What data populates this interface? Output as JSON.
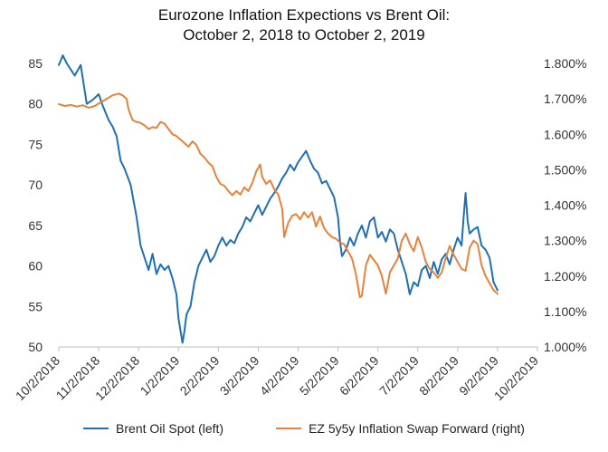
{
  "chart_data": {
    "type": "line",
    "title_line1": "Eurozone Inflation Expections vs Brent Oil:",
    "title_line2": "October 2, 2018 to October 2, 2019",
    "x_labels": [
      "10/2/2018",
      "11/2/2018",
      "12/2/2018",
      "1/2/2019",
      "2/2/2019",
      "3/2/2019",
      "4/2/2019",
      "5/2/2019",
      "6/2/2019",
      "7/2/2019",
      "8/2/2019",
      "9/2/2019",
      "10/2/2019"
    ],
    "y_left": {
      "min": 50,
      "max": 85,
      "step": 5,
      "tick_labels": [
        "50",
        "55",
        "60",
        "65",
        "70",
        "75",
        "80",
        "85"
      ]
    },
    "y_right": {
      "min": 1.0,
      "max": 1.8,
      "step": 0.1,
      "tick_labels": [
        "1.000%",
        "1.100%",
        "1.200%",
        "1.300%",
        "1.400%",
        "1.500%",
        "1.600%",
        "1.700%",
        "1.800%"
      ]
    },
    "series": [
      {
        "name": "Brent Oil Spot (left)",
        "axis": "left",
        "color": "#1f6fb4",
        "points": [
          [
            0,
            84.8
          ],
          [
            0.1,
            86.0
          ],
          [
            0.2,
            85.0
          ],
          [
            0.4,
            83.5
          ],
          [
            0.55,
            84.8
          ],
          [
            0.7,
            80.0
          ],
          [
            0.85,
            80.5
          ],
          [
            1.0,
            81.2
          ],
          [
            1.1,
            79.8
          ],
          [
            1.25,
            78.0
          ],
          [
            1.35,
            77.2
          ],
          [
            1.45,
            76.0
          ],
          [
            1.55,
            73.0
          ],
          [
            1.65,
            72.0
          ],
          [
            1.8,
            70.0
          ],
          [
            1.95,
            66.0
          ],
          [
            2.05,
            62.5
          ],
          [
            2.15,
            61.0
          ],
          [
            2.25,
            59.5
          ],
          [
            2.35,
            61.5
          ],
          [
            2.45,
            59.0
          ],
          [
            2.55,
            60.2
          ],
          [
            2.65,
            59.5
          ],
          [
            2.75,
            60.0
          ],
          [
            2.85,
            58.5
          ],
          [
            2.95,
            56.5
          ],
          [
            3.0,
            53.5
          ],
          [
            3.05,
            52.0
          ],
          [
            3.1,
            50.5
          ],
          [
            3.15,
            52.0
          ],
          [
            3.2,
            54.0
          ],
          [
            3.3,
            55.0
          ],
          [
            3.4,
            58.0
          ],
          [
            3.5,
            60.0
          ],
          [
            3.6,
            61.0
          ],
          [
            3.7,
            62.0
          ],
          [
            3.8,
            60.5
          ],
          [
            3.9,
            61.2
          ],
          [
            4.0,
            62.5
          ],
          [
            4.1,
            63.5
          ],
          [
            4.2,
            62.5
          ],
          [
            4.3,
            63.2
          ],
          [
            4.4,
            62.8
          ],
          [
            4.5,
            64.0
          ],
          [
            4.6,
            64.8
          ],
          [
            4.7,
            66.0
          ],
          [
            4.8,
            65.5
          ],
          [
            4.9,
            66.5
          ],
          [
            5.0,
            67.5
          ],
          [
            5.1,
            66.3
          ],
          [
            5.2,
            67.3
          ],
          [
            5.3,
            68.3
          ],
          [
            5.4,
            69.0
          ],
          [
            5.5,
            69.8
          ],
          [
            5.6,
            70.8
          ],
          [
            5.7,
            71.5
          ],
          [
            5.8,
            72.5
          ],
          [
            5.9,
            71.8
          ],
          [
            6.0,
            72.8
          ],
          [
            6.1,
            73.5
          ],
          [
            6.2,
            74.2
          ],
          [
            6.3,
            73.0
          ],
          [
            6.4,
            72.0
          ],
          [
            6.5,
            71.5
          ],
          [
            6.6,
            70.2
          ],
          [
            6.7,
            70.5
          ],
          [
            6.8,
            69.5
          ],
          [
            6.9,
            68.5
          ],
          [
            7.0,
            66.0
          ],
          [
            7.05,
            63.0
          ],
          [
            7.1,
            61.2
          ],
          [
            7.2,
            62.0
          ],
          [
            7.3,
            63.5
          ],
          [
            7.4,
            62.5
          ],
          [
            7.5,
            64.0
          ],
          [
            7.6,
            65.0
          ],
          [
            7.7,
            63.5
          ],
          [
            7.8,
            65.5
          ],
          [
            7.9,
            66.0
          ],
          [
            8.0,
            63.5
          ],
          [
            8.1,
            64.2
          ],
          [
            8.2,
            63.0
          ],
          [
            8.3,
            64.5
          ],
          [
            8.4,
            64.0
          ],
          [
            8.5,
            62.0
          ],
          [
            8.6,
            60.5
          ],
          [
            8.7,
            59.0
          ],
          [
            8.8,
            56.5
          ],
          [
            8.9,
            58.0
          ],
          [
            9.0,
            57.5
          ],
          [
            9.1,
            59.5
          ],
          [
            9.2,
            60.0
          ],
          [
            9.3,
            58.5
          ],
          [
            9.4,
            60.5
          ],
          [
            9.5,
            59.0
          ],
          [
            9.6,
            60.8
          ],
          [
            9.7,
            61.5
          ],
          [
            9.8,
            60.2
          ],
          [
            9.9,
            62.0
          ],
          [
            10.0,
            63.5
          ],
          [
            10.1,
            62.5
          ],
          [
            10.15,
            66.0
          ],
          [
            10.2,
            69.0
          ],
          [
            10.25,
            65.5
          ],
          [
            10.3,
            64.0
          ],
          [
            10.4,
            64.5
          ],
          [
            10.5,
            64.8
          ],
          [
            10.6,
            62.5
          ],
          [
            10.7,
            62.0
          ],
          [
            10.8,
            61.0
          ],
          [
            10.9,
            58.0
          ],
          [
            11.0,
            57.0
          ]
        ]
      },
      {
        "name": "EZ 5y5y Inflation Swap Forward (right)",
        "axis": "right",
        "color": "#e8823a",
        "points": [
          [
            0,
            1.685
          ],
          [
            0.15,
            1.68
          ],
          [
            0.3,
            1.683
          ],
          [
            0.45,
            1.678
          ],
          [
            0.6,
            1.682
          ],
          [
            0.75,
            1.675
          ],
          [
            0.9,
            1.68
          ],
          [
            1.05,
            1.69
          ],
          [
            1.2,
            1.7
          ],
          [
            1.35,
            1.71
          ],
          [
            1.5,
            1.715
          ],
          [
            1.6,
            1.71
          ],
          [
            1.7,
            1.7
          ],
          [
            1.75,
            1.67
          ],
          [
            1.85,
            1.64
          ],
          [
            1.95,
            1.635
          ],
          [
            2.05,
            1.632
          ],
          [
            2.15,
            1.625
          ],
          [
            2.25,
            1.615
          ],
          [
            2.35,
            1.62
          ],
          [
            2.45,
            1.618
          ],
          [
            2.55,
            1.635
          ],
          [
            2.65,
            1.63
          ],
          [
            2.75,
            1.615
          ],
          [
            2.85,
            1.6
          ],
          [
            2.95,
            1.595
          ],
          [
            3.05,
            1.585
          ],
          [
            3.15,
            1.575
          ],
          [
            3.25,
            1.565
          ],
          [
            3.35,
            1.58
          ],
          [
            3.45,
            1.57
          ],
          [
            3.55,
            1.545
          ],
          [
            3.65,
            1.535
          ],
          [
            3.75,
            1.52
          ],
          [
            3.85,
            1.51
          ],
          [
            3.95,
            1.48
          ],
          [
            4.05,
            1.46
          ],
          [
            4.15,
            1.455
          ],
          [
            4.25,
            1.44
          ],
          [
            4.35,
            1.428
          ],
          [
            4.45,
            1.44
          ],
          [
            4.55,
            1.43
          ],
          [
            4.65,
            1.45
          ],
          [
            4.75,
            1.44
          ],
          [
            4.85,
            1.462
          ],
          [
            4.95,
            1.495
          ],
          [
            5.05,
            1.515
          ],
          [
            5.1,
            1.48
          ],
          [
            5.2,
            1.46
          ],
          [
            5.3,
            1.47
          ],
          [
            5.4,
            1.445
          ],
          [
            5.5,
            1.43
          ],
          [
            5.6,
            1.39
          ],
          [
            5.65,
            1.31
          ],
          [
            5.75,
            1.35
          ],
          [
            5.85,
            1.37
          ],
          [
            5.95,
            1.375
          ],
          [
            6.05,
            1.36
          ],
          [
            6.15,
            1.38
          ],
          [
            6.25,
            1.365
          ],
          [
            6.35,
            1.38
          ],
          [
            6.45,
            1.34
          ],
          [
            6.55,
            1.368
          ],
          [
            6.65,
            1.335
          ],
          [
            6.75,
            1.32
          ],
          [
            6.85,
            1.31
          ],
          [
            6.95,
            1.305
          ],
          [
            7.05,
            1.295
          ],
          [
            7.15,
            1.29
          ],
          [
            7.25,
            1.27
          ],
          [
            7.35,
            1.25
          ],
          [
            7.45,
            1.205
          ],
          [
            7.55,
            1.14
          ],
          [
            7.6,
            1.145
          ],
          [
            7.7,
            1.23
          ],
          [
            7.8,
            1.26
          ],
          [
            7.9,
            1.245
          ],
          [
            8.0,
            1.23
          ],
          [
            8.1,
            1.2
          ],
          [
            8.2,
            1.15
          ],
          [
            8.3,
            1.21
          ],
          [
            8.4,
            1.23
          ],
          [
            8.5,
            1.25
          ],
          [
            8.6,
            1.3
          ],
          [
            8.7,
            1.32
          ],
          [
            8.8,
            1.29
          ],
          [
            8.9,
            1.27
          ],
          [
            9.0,
            1.31
          ],
          [
            9.1,
            1.28
          ],
          [
            9.2,
            1.24
          ],
          [
            9.3,
            1.22
          ],
          [
            9.4,
            1.21
          ],
          [
            9.5,
            1.195
          ],
          [
            9.6,
            1.21
          ],
          [
            9.7,
            1.25
          ],
          [
            9.8,
            1.285
          ],
          [
            9.9,
            1.26
          ],
          [
            10.0,
            1.24
          ],
          [
            10.1,
            1.22
          ],
          [
            10.2,
            1.215
          ],
          [
            10.3,
            1.28
          ],
          [
            10.4,
            1.3
          ],
          [
            10.5,
            1.29
          ],
          [
            10.6,
            1.23
          ],
          [
            10.7,
            1.2
          ],
          [
            10.8,
            1.18
          ],
          [
            10.9,
            1.16
          ],
          [
            11.0,
            1.15
          ]
        ]
      }
    ]
  }
}
